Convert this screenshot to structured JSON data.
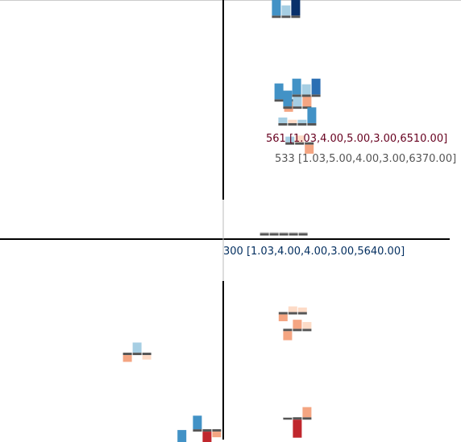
{
  "chart_data": {
    "type": "scatter",
    "title": "",
    "xlabel": "",
    "ylabel": "",
    "grid": false,
    "legend": "none",
    "frame_line_color": "#cccccc",
    "axis_color": "#000000",
    "baseline_color": "#555555",
    "palette": {
      "dark_red": "#c0272d",
      "salmon": "#f4a582",
      "pale_salmon": "#fddbc7",
      "light_blue": "#a6cee3",
      "mid_blue": "#4292c6",
      "blue": "#2c6fb3",
      "navy": "#08306b",
      "light_grey_bar": "#d9d9d9"
    },
    "annotations": [
      {
        "text": "561 [1.03,4.00,5.00,3.00,6510.00]",
        "color": "#67001f"
      },
      {
        "text": "533 [1.03,5.00,4.00,3.00,6370.00]",
        "color": "#555555"
      },
      {
        "text": "300 [1.03,4.00,4.00,3.00,5640.00]",
        "color": "#053061"
      }
    ],
    "glyphs": [
      {
        "x": 0.28,
        "y": 0.93,
        "bars": [
          {
            "v": 0.7,
            "c": "mid_blue"
          },
          {
            "v": 0.45,
            "c": "light_blue"
          },
          {
            "v": 1.2,
            "c": "navy"
          }
        ]
      },
      {
        "x": 0.27,
        "y": 0.58,
        "bars": [
          {
            "v": 0.7,
            "c": "mid_blue"
          },
          {
            "v": -0.45,
            "c": "salmon"
          }
        ]
      },
      {
        "x": 0.33,
        "y": 0.55,
        "bars": [
          {
            "v": 0.7,
            "c": "mid_blue"
          },
          {
            "v": 0.45,
            "c": "light_blue"
          },
          {
            "v": 0.45,
            "c": "salmon"
          }
        ]
      },
      {
        "x": 0.37,
        "y": 0.6,
        "bars": [
          {
            "v": 0.7,
            "c": "mid_blue"
          },
          {
            "v": 0.45,
            "c": "light_blue"
          },
          {
            "v": 0.7,
            "c": "blue"
          }
        ]
      },
      {
        "x": 0.33,
        "y": 0.48,
        "bars": [
          {
            "v": 0.25,
            "c": "light_blue"
          },
          {
            "v": 0.15,
            "c": "pale_salmon"
          },
          {
            "v": 0.15,
            "c": "light_blue"
          },
          {
            "v": 0.7,
            "c": "mid_blue"
          }
        ]
      },
      {
        "x": 0.34,
        "y": 0.4,
        "bars": [
          {
            "v": 0.25,
            "c": "light_blue"
          },
          {
            "v": 0.3,
            "c": "pale_salmon"
          },
          {
            "v": -0.4,
            "c": "salmon"
          }
        ]
      },
      {
        "x": 0.27,
        "y": 0.02,
        "bars": [
          {
            "v": 0.05,
            "c": "light_grey_bar"
          },
          {
            "v": 0.05,
            "c": "light_grey_bar"
          },
          {
            "v": 0.05,
            "c": "light_grey_bar"
          },
          {
            "v": 0.05,
            "c": "light_grey_bar"
          },
          {
            "v": 0.05,
            "c": "light_grey_bar"
          }
        ]
      },
      {
        "x": -0.38,
        "y": -0.48,
        "bars": [
          {
            "v": -0.3,
            "c": "salmon"
          },
          {
            "v": 0.45,
            "c": "light_blue"
          },
          {
            "v": -0.2,
            "c": "pale_salmon"
          }
        ]
      },
      {
        "x": 0.31,
        "y": -0.31,
        "bars": [
          {
            "v": -0.3,
            "c": "salmon"
          },
          {
            "v": 0.25,
            "c": "pale_salmon"
          },
          {
            "v": 0.2,
            "c": "pale_salmon"
          }
        ]
      },
      {
        "x": 0.33,
        "y": -0.38,
        "bars": [
          {
            "v": -0.4,
            "c": "salmon"
          },
          {
            "v": 0.4,
            "c": "salmon"
          },
          {
            "v": 0.3,
            "c": "pale_salmon"
          }
        ]
      },
      {
        "x": -0.16,
        "y": -0.86,
        "bars": [
          {
            "v": 0.6,
            "c": "mid_blue"
          },
          {
            "v": -0.8,
            "c": "dark_red"
          }
        ]
      },
      {
        "x": -0.07,
        "y": -0.8,
        "bars": [
          {
            "v": 0.6,
            "c": "mid_blue"
          },
          {
            "v": -0.8,
            "c": "dark_red"
          },
          {
            "v": -0.25,
            "c": "salmon"
          }
        ]
      },
      {
        "x": 0.33,
        "y": -0.75,
        "bars": [
          {
            "v": 0.01,
            "c": "light_grey_bar"
          },
          {
            "v": -0.8,
            "c": "dark_red"
          },
          {
            "v": 0.45,
            "c": "salmon"
          }
        ]
      }
    ]
  }
}
